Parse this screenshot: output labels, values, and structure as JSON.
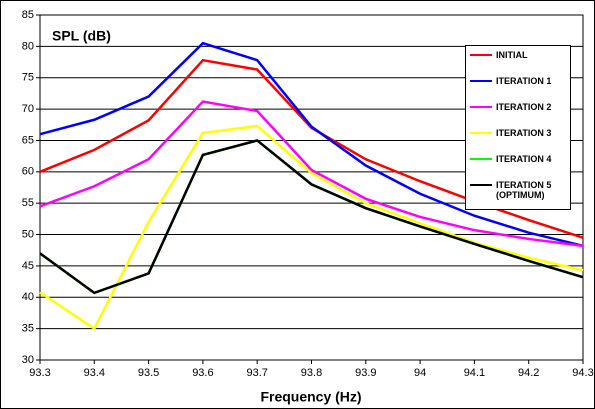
{
  "chart_data": {
    "type": "line",
    "title": "SPL (dB)",
    "x_label": "Frequency (Hz)",
    "x": [
      93.3,
      93.4,
      93.5,
      93.6,
      93.7,
      93.8,
      93.9,
      94,
      94.1,
      94.2,
      94.3
    ],
    "xlim": [
      93.3,
      94.3
    ],
    "xticks": [
      93.3,
      93.4,
      93.5,
      93.6,
      93.7,
      93.8,
      93.9,
      94,
      94.1,
      94.2,
      94.3
    ],
    "ylim": [
      30,
      85
    ],
    "yticks": [
      30,
      35,
      40,
      45,
      50,
      55,
      60,
      65,
      70,
      75,
      80,
      85
    ],
    "grid": true,
    "legend": "upper right",
    "series": [
      {
        "name": "INITIAL",
        "color": "#ff0000",
        "values": [
          60,
          63.5,
          68.2,
          77.8,
          76.3,
          67,
          62,
          58.5,
          55.3,
          52.3,
          49.5
        ]
      },
      {
        "name": "ITERATION 1",
        "color": "#0000ff",
        "values": [
          66,
          68.3,
          72,
          80.5,
          77.8,
          67.2,
          61,
          56.5,
          53,
          50.3,
          48.2
        ]
      },
      {
        "name": "ITERATION 2",
        "color": "#ff00ff",
        "values": [
          54.5,
          57.7,
          62,
          71.2,
          69.7,
          60.3,
          55.7,
          52.8,
          50.7,
          49.3,
          48.2
        ]
      },
      {
        "name": "ITERATION 3",
        "color": "#ffff00",
        "values": [
          40.8,
          35,
          52,
          66.2,
          67.3,
          59.8,
          55,
          51.8,
          48.7,
          46.3,
          44.3
        ]
      },
      {
        "name": "ITERATION 4",
        "color": "#00ff00",
        "values": [
          47,
          40.7,
          43.8,
          62.7,
          65,
          58,
          54.2,
          51.3,
          48.5,
          45.8,
          43.2
        ]
      },
      {
        "name": "ITERATION 5 (OPTIMUM)",
        "color": "#000000",
        "values": [
          47,
          40.7,
          43.8,
          62.7,
          65,
          58,
          54.2,
          51.3,
          48.5,
          45.8,
          43.2
        ]
      }
    ]
  }
}
